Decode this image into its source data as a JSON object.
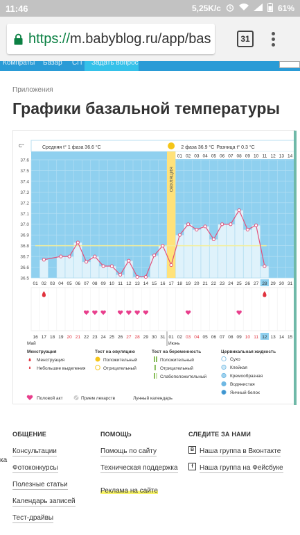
{
  "status_bar": {
    "time": "11:46",
    "speed": "5,25K/c",
    "battery": "61%"
  },
  "browser": {
    "url_scheme": "https://",
    "url_rest": "m.babyblog.ru/app/bas",
    "tab_count": "31"
  },
  "site_nav": {
    "items": [
      "Компраты",
      "Базар",
      "СП",
      "Задать вопрос"
    ]
  },
  "breadcrumb": "Приложения",
  "page_title": "Графики базальной температуры",
  "chart_data": {
    "type": "line",
    "y_unit": "C°",
    "ylim": [
      36.5,
      37.6
    ],
    "yticks": [
      "37.6",
      "37.5",
      "37.4",
      "37.3",
      "37.2",
      "37.1",
      "37.0",
      "36.9",
      "36.8",
      "36.7",
      "36.6",
      "36.5"
    ],
    "header_phase1": "Средняя t° 1 фаза 36.6 °C",
    "header_phase2": "2 фаза 36.9 °C",
    "header_diff": "Разница t° 0.3 °C",
    "ovulation_label": "ОВУЛЯЦИЯ",
    "ovulation_index": 16,
    "cycle_day": 28,
    "coverline": 36.8,
    "top_day_labels": [
      "01",
      "02",
      "03",
      "04",
      "05",
      "06",
      "07",
      "08",
      "09",
      "10",
      "11",
      "12",
      "13",
      "14"
    ],
    "x_days": [
      "01",
      "02",
      "03",
      "04",
      "05",
      "06",
      "07",
      "08",
      "09",
      "10",
      "11",
      "12",
      "13",
      "14",
      "15",
      "16",
      "17",
      "18",
      "19",
      "20",
      "21",
      "22",
      "23",
      "24",
      "25",
      "26",
      "27",
      "28",
      "29",
      "30",
      "31"
    ],
    "values": [
      null,
      36.67,
      null,
      36.7,
      36.7,
      36.83,
      36.65,
      36.7,
      36.61,
      36.61,
      36.53,
      36.66,
      36.51,
      36.51,
      36.71,
      36.8,
      36.62,
      36.9,
      37.0,
      36.95,
      36.98,
      36.86,
      37.0,
      37.0,
      37.13,
      36.95,
      36.99,
      36.61,
      null,
      null,
      null
    ],
    "dates_top": [
      "16",
      "17",
      "18",
      "19",
      "20",
      "21",
      "22",
      "23",
      "24",
      "25",
      "26",
      "27",
      "28",
      "29",
      "30",
      "31",
      "01",
      "02",
      "03",
      "04",
      "05",
      "06",
      "07",
      "08",
      "09",
      "10",
      "11",
      "12",
      "13",
      "14",
      "15"
    ],
    "dates_red": [
      "20",
      "21",
      "27",
      "28",
      "03",
      "04",
      "10",
      "11"
    ],
    "month1": "Май",
    "month2": "Июнь",
    "today_date": "12",
    "menstruation_days": [
      1,
      27
    ],
    "intercourse_days": [
      6,
      7,
      8,
      10,
      11,
      12,
      13,
      18,
      24
    ],
    "legend": {
      "menstruation_title": "Менструация",
      "menstruation": "Менструация",
      "spotting": "Небольшие выделения",
      "ovulation_test_title": "Тест на овуляцию",
      "ov_positive": "Положительный",
      "ov_negative": "Отрицательный",
      "pregnancy_test_title": "Тест на беременность",
      "preg_positive": "Положительный",
      "preg_negative": "Отрицательный",
      "preg_weak": "Слабоположительный",
      "cervical_title": "Цервикальная жидкость",
      "cerv_dry": "Сухо",
      "cerv_sticky": "Клейкая",
      "cerv_creamy": "Кремообразная",
      "cerv_watery": "Водянистая",
      "cerv_eggwhite": "Яичный белок",
      "intercourse": "Половой акт",
      "medicine": "Прием лекарств",
      "lunar": "Лунный календарь"
    },
    "colors": {
      "plot_bg": "#8fd0ef",
      "bar_fill": "#dff2fb",
      "line": "#e2507a",
      "ovulation": "#ffe27a",
      "coverline": "#f4ee9a"
    }
  },
  "footer": {
    "col1": {
      "title": "ОБЩЕНИЕ",
      "links": [
        "Консультации",
        "Фотоконкурсы",
        "Полезные статьи",
        "Календарь записей",
        "Тест-драйвы"
      ]
    },
    "col2": {
      "title": "ПОМОЩЬ",
      "links": [
        "Помощь по сайту",
        "Техническая поддержка",
        "Реклама на сайте"
      ]
    },
    "col3": {
      "title": "СЛЕДИТЕ ЗА НАМИ",
      "links": [
        "Наша группа в Вконтакте",
        "Наша группа на Фейсбуке"
      ],
      "badges": [
        "В",
        "f"
      ]
    },
    "cut_label": "ка"
  }
}
